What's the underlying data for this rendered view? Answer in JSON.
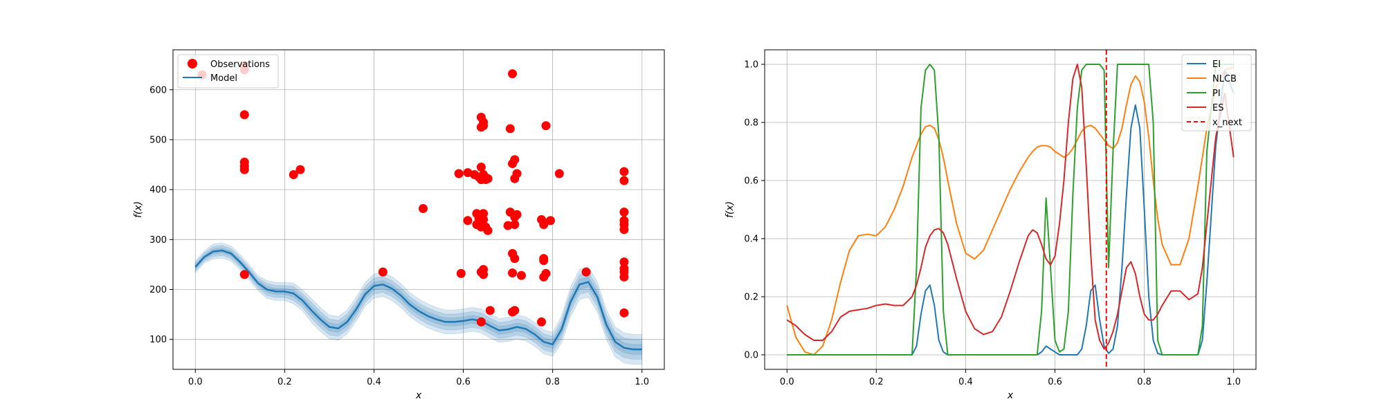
{
  "chart_data": [
    {
      "type": "scatter",
      "xlabel": "x",
      "ylabel": "f(x)",
      "xlim": [
        -0.05,
        1.05
      ],
      "ylim": [
        40,
        680
      ],
      "xticks": [
        0.0,
        0.2,
        0.4,
        0.6,
        0.8,
        1.0
      ],
      "xtick_labels": [
        "0.0",
        "0.2",
        "0.4",
        "0.6",
        "0.8",
        "1.0"
      ],
      "yticks": [
        100,
        200,
        300,
        400,
        500,
        600
      ],
      "ytick_labels": [
        "100",
        "200",
        "300",
        "400",
        "500",
        "600"
      ],
      "grid": true,
      "legend": {
        "placement": "top-left",
        "entries": [
          "Observations",
          "Model"
        ]
      },
      "colors": {
        "observations": "#ff0000",
        "model": "#1f77b4"
      },
      "series": [
        {
          "name": "Observations",
          "kind": "scatter",
          "points": [
            [
              0.015,
              630
            ],
            [
              0.11,
              640
            ],
            [
              0.11,
              648
            ],
            [
              0.11,
              550
            ],
            [
              0.11,
              455
            ],
            [
              0.11,
              447
            ],
            [
              0.11,
              440
            ],
            [
              0.11,
              230
            ],
            [
              0.22,
              430
            ],
            [
              0.235,
              440
            ],
            [
              0.42,
              235
            ],
            [
              0.51,
              362
            ],
            [
              0.59,
              432
            ],
            [
              0.595,
              232
            ],
            [
              0.61,
              434
            ],
            [
              0.61,
              338
            ],
            [
              0.625,
              430
            ],
            [
              0.63,
              352
            ],
            [
              0.63,
              330
            ],
            [
              0.635,
              425
            ],
            [
              0.635,
              342
            ],
            [
              0.64,
              545
            ],
            [
              0.64,
              525
            ],
            [
              0.64,
              445
            ],
            [
              0.64,
              420
            ],
            [
              0.64,
              350
            ],
            [
              0.64,
              325
            ],
            [
              0.64,
              235
            ],
            [
              0.64,
              135
            ],
            [
              0.645,
              535
            ],
            [
              0.645,
              528
            ],
            [
              0.645,
              430
            ],
            [
              0.645,
              240
            ],
            [
              0.645,
              230
            ],
            [
              0.645,
              352
            ],
            [
              0.645,
              340
            ],
            [
              0.65,
              420
            ],
            [
              0.65,
              325
            ],
            [
              0.655,
              422
            ],
            [
              0.655,
              318
            ],
            [
              0.66,
              158
            ],
            [
              0.7,
              328
            ],
            [
              0.705,
              522
            ],
            [
              0.705,
              355
            ],
            [
              0.71,
              632
            ],
            [
              0.71,
              452
            ],
            [
              0.71,
              272
            ],
            [
              0.71,
              233
            ],
            [
              0.71,
              155
            ],
            [
              0.715,
              460
            ],
            [
              0.715,
              422
            ],
            [
              0.715,
              345
            ],
            [
              0.715,
              330
            ],
            [
              0.715,
              262
            ],
            [
              0.715,
              158
            ],
            [
              0.72,
              350
            ],
            [
              0.72,
              432
            ],
            [
              0.73,
              228
            ],
            [
              0.775,
              340
            ],
            [
              0.775,
              135
            ],
            [
              0.78,
              330
            ],
            [
              0.78,
              262
            ],
            [
              0.78,
              258
            ],
            [
              0.78,
              225
            ],
            [
              0.785,
              528
            ],
            [
              0.785,
              232
            ],
            [
              0.795,
              338
            ],
            [
              0.815,
              432
            ],
            [
              0.875,
              235
            ],
            [
              0.96,
              436
            ],
            [
              0.96,
              418
            ],
            [
              0.96,
              355
            ],
            [
              0.96,
              338
            ],
            [
              0.96,
              330
            ],
            [
              0.96,
              320
            ],
            [
              0.96,
              255
            ],
            [
              0.96,
              242
            ],
            [
              0.96,
              235
            ],
            [
              0.96,
              225
            ],
            [
              0.96,
              153
            ]
          ]
        },
        {
          "name": "Model",
          "kind": "line",
          "x": [
            0.0,
            0.02,
            0.04,
            0.06,
            0.08,
            0.1,
            0.12,
            0.14,
            0.16,
            0.18,
            0.2,
            0.22,
            0.24,
            0.26,
            0.28,
            0.3,
            0.32,
            0.34,
            0.36,
            0.38,
            0.4,
            0.42,
            0.44,
            0.46,
            0.48,
            0.5,
            0.52,
            0.54,
            0.56,
            0.58,
            0.6,
            0.62,
            0.64,
            0.66,
            0.68,
            0.7,
            0.72,
            0.74,
            0.76,
            0.78,
            0.8,
            0.82,
            0.84,
            0.86,
            0.88,
            0.9,
            0.92,
            0.94,
            0.96,
            0.98,
            1.0
          ],
          "y": [
            245,
            265,
            276,
            278,
            272,
            255,
            235,
            213,
            200,
            196,
            196,
            192,
            178,
            158,
            140,
            125,
            122,
            135,
            160,
            190,
            207,
            210,
            202,
            188,
            170,
            157,
            147,
            140,
            135,
            135,
            137,
            140,
            137,
            127,
            118,
            120,
            125,
            121,
            110,
            95,
            90,
            120,
            175,
            210,
            215,
            185,
            130,
            95,
            83,
            80,
            80
          ],
          "band_halfwidth": [
            4,
            4,
            5,
            5,
            5,
            5,
            5,
            5,
            6,
            6,
            6,
            7,
            7,
            8,
            8,
            8,
            8,
            8,
            8,
            8,
            8,
            8,
            8,
            8,
            8,
            8,
            8,
            8,
            8,
            8,
            8,
            8,
            8,
            8,
            8,
            8,
            8,
            8,
            8,
            8,
            8,
            9,
            10,
            10,
            10,
            10,
            10,
            10,
            10,
            10,
            10
          ]
        }
      ]
    },
    {
      "type": "line",
      "xlabel": "x",
      "ylabel": "f(x)",
      "xlim": [
        -0.05,
        1.05
      ],
      "ylim": [
        -0.05,
        1.05
      ],
      "xticks": [
        0.0,
        0.2,
        0.4,
        0.6,
        0.8,
        1.0
      ],
      "xtick_labels": [
        "0.0",
        "0.2",
        "0.4",
        "0.6",
        "0.8",
        "1.0"
      ],
      "yticks": [
        0.0,
        0.2,
        0.4,
        0.6,
        0.8,
        1.0
      ],
      "ytick_labels": [
        "0.0",
        "0.2",
        "0.4",
        "0.6",
        "0.8",
        "1.0"
      ],
      "grid": true,
      "legend": {
        "placement": "top-right",
        "entries": [
          "EI",
          "NLCB",
          "PI",
          "ES",
          "x_next"
        ]
      },
      "x": [
        0.0,
        0.02,
        0.04,
        0.06,
        0.08,
        0.1,
        0.12,
        0.14,
        0.16,
        0.18,
        0.2,
        0.22,
        0.24,
        0.26,
        0.28,
        0.29,
        0.3,
        0.31,
        0.32,
        0.33,
        0.34,
        0.35,
        0.36,
        0.38,
        0.4,
        0.42,
        0.44,
        0.46,
        0.48,
        0.5,
        0.52,
        0.54,
        0.55,
        0.56,
        0.57,
        0.58,
        0.59,
        0.6,
        0.61,
        0.62,
        0.63,
        0.64,
        0.65,
        0.66,
        0.67,
        0.68,
        0.69,
        0.7,
        0.71,
        0.72,
        0.73,
        0.74,
        0.75,
        0.76,
        0.77,
        0.78,
        0.79,
        0.8,
        0.81,
        0.82,
        0.83,
        0.84,
        0.86,
        0.88,
        0.9,
        0.92,
        0.93,
        0.94,
        0.96,
        0.98,
        1.0
      ],
      "series": [
        {
          "name": "EI",
          "color": "#1f77b4",
          "y": [
            0,
            0,
            0,
            0,
            0,
            0,
            0,
            0,
            0,
            0,
            0,
            0,
            0,
            0,
            0,
            0.03,
            0.14,
            0.22,
            0.24,
            0.17,
            0.05,
            0.01,
            0,
            0,
            0,
            0,
            0,
            0,
            0,
            0,
            0,
            0,
            0,
            0,
            0.01,
            0.03,
            0.02,
            0.01,
            0,
            0,
            0,
            0,
            0,
            0.02,
            0.1,
            0.22,
            0.24,
            0.12,
            0.03,
            0.005,
            0.02,
            0.1,
            0.3,
            0.55,
            0.78,
            0.86,
            0.78,
            0.5,
            0.2,
            0.05,
            0.005,
            0,
            0,
            0,
            0,
            0,
            0.05,
            0.25,
            0.72,
            0.98,
            0.9
          ]
        },
        {
          "name": "NLCB",
          "color": "#ff7f0e",
          "y": [
            0.17,
            0.06,
            0.01,
            0,
            0.03,
            0.12,
            0.25,
            0.36,
            0.41,
            0.415,
            0.41,
            0.44,
            0.5,
            0.58,
            0.68,
            0.72,
            0.76,
            0.785,
            0.79,
            0.78,
            0.74,
            0.68,
            0.6,
            0.45,
            0.35,
            0.33,
            0.36,
            0.43,
            0.5,
            0.57,
            0.63,
            0.68,
            0.7,
            0.715,
            0.72,
            0.72,
            0.715,
            0.7,
            0.69,
            0.68,
            0.69,
            0.71,
            0.74,
            0.77,
            0.785,
            0.79,
            0.78,
            0.76,
            0.74,
            0.72,
            0.71,
            0.73,
            0.78,
            0.86,
            0.93,
            0.96,
            0.94,
            0.87,
            0.75,
            0.6,
            0.47,
            0.38,
            0.31,
            0.31,
            0.4,
            0.58,
            0.68,
            0.78,
            0.92,
            0.98,
            0.99
          ]
        },
        {
          "name": "PI",
          "color": "#2ca02c",
          "y": [
            0,
            0,
            0,
            0,
            0,
            0,
            0,
            0,
            0,
            0,
            0,
            0,
            0,
            0,
            0,
            0.3,
            0.85,
            0.98,
            1.0,
            0.98,
            0.75,
            0.15,
            0,
            0,
            0,
            0,
            0,
            0,
            0,
            0,
            0,
            0,
            0,
            0,
            0.15,
            0.54,
            0.3,
            0.05,
            0.01,
            0.02,
            0.15,
            0.55,
            0.85,
            0.98,
            1.0,
            1.0,
            1.0,
            1.0,
            0.98,
            0.3,
            0.7,
            1.0,
            1.0,
            1.0,
            1.0,
            1.0,
            1.0,
            1.0,
            1.0,
            0.8,
            0.05,
            0,
            0,
            0,
            0,
            0,
            0.1,
            0.7,
            1.0,
            1.0,
            1.0
          ]
        },
        {
          "name": "ES",
          "color": "#d62728",
          "y": [
            0.12,
            0.1,
            0.07,
            0.05,
            0.05,
            0.08,
            0.13,
            0.15,
            0.155,
            0.16,
            0.17,
            0.175,
            0.17,
            0.17,
            0.2,
            0.24,
            0.3,
            0.37,
            0.41,
            0.43,
            0.435,
            0.42,
            0.38,
            0.26,
            0.15,
            0.09,
            0.07,
            0.08,
            0.13,
            0.22,
            0.32,
            0.41,
            0.43,
            0.42,
            0.38,
            0.33,
            0.31,
            0.34,
            0.45,
            0.6,
            0.8,
            0.95,
            1.0,
            0.92,
            0.65,
            0.35,
            0.12,
            0.05,
            0.02,
            0.04,
            0.08,
            0.14,
            0.22,
            0.3,
            0.32,
            0.28,
            0.2,
            0.14,
            0.12,
            0.12,
            0.14,
            0.17,
            0.22,
            0.22,
            0.19,
            0.21,
            0.3,
            0.45,
            0.75,
            0.9,
            0.68
          ]
        }
      ],
      "vline": {
        "name": "x_next",
        "x": 0.715,
        "color": "#ff0000",
        "style": "dashed"
      }
    }
  ]
}
